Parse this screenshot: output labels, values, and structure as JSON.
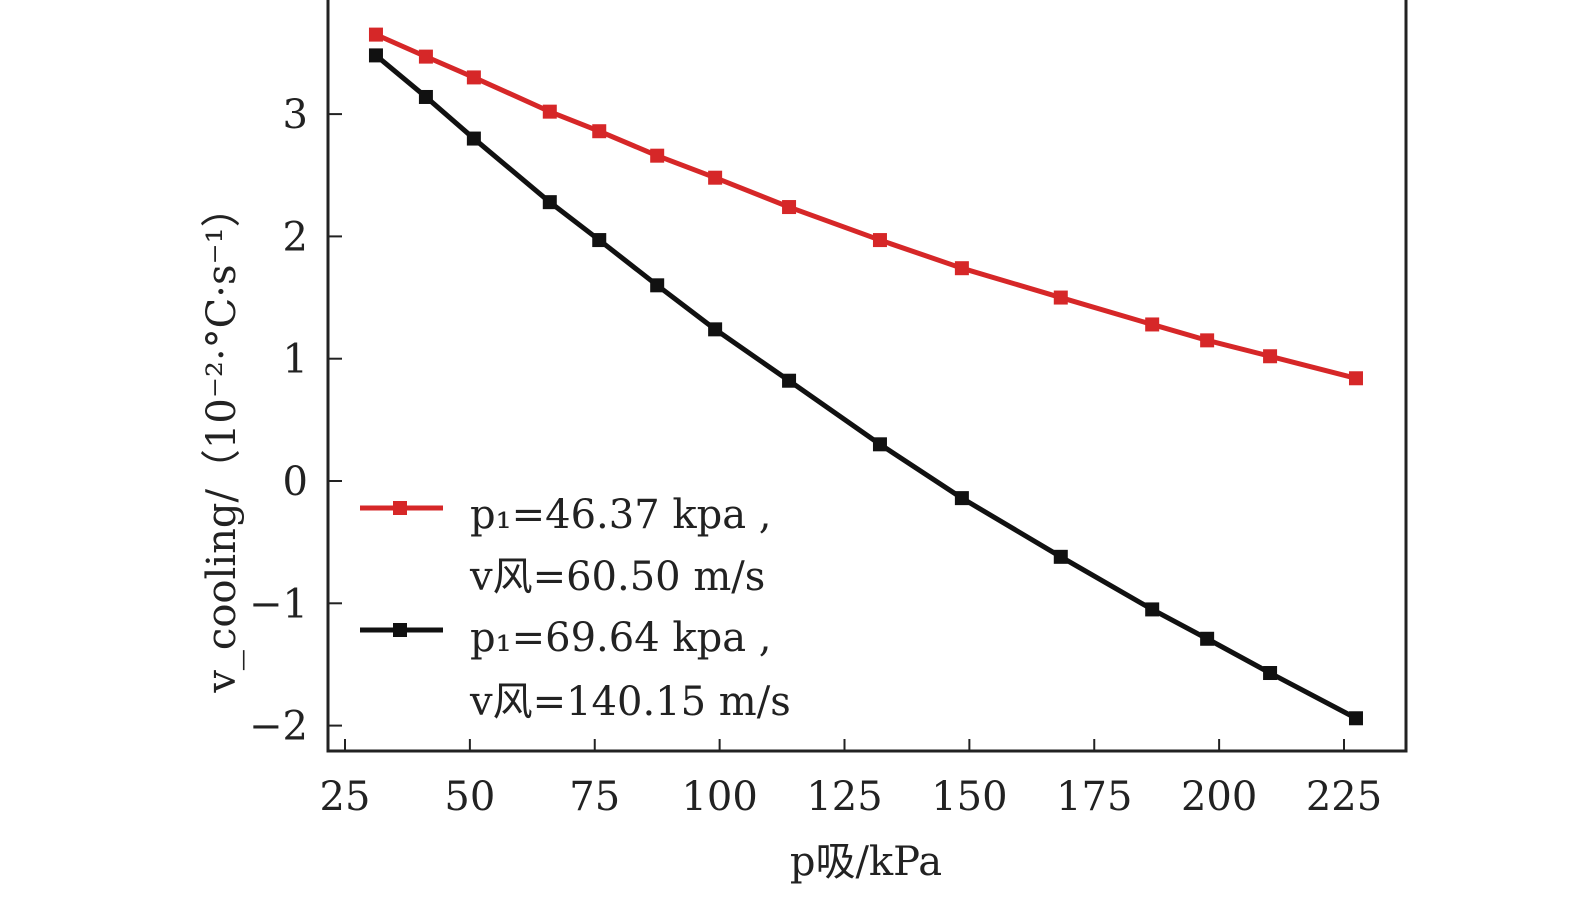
{
  "chart_data": {
    "type": "line",
    "title": "",
    "xlabel": "p吸/kPa",
    "xlabel_var": "p",
    "xlabel_sub": "吸",
    "xlabel_unit": "/kPa",
    "ylabel": "v_cooling/（10⁻²·°C·s⁻¹）",
    "ylabel_var": "v",
    "ylabel_sub": "cooling",
    "ylabel_unit": "/（10⁻²·°C·s⁻¹）",
    "xlim": [
      22,
      240
    ],
    "ylim": [
      -2.2,
      3.95
    ],
    "xticks": [
      25,
      50,
      75,
      100,
      125,
      150,
      175,
      200,
      225
    ],
    "xtick_labels": [
      "25",
      "50",
      "75",
      "100",
      "125",
      "150",
      "175",
      "200",
      "225"
    ],
    "yticks": [
      -2,
      -1,
      0,
      1,
      2,
      3
    ],
    "ytick_labels": [
      "−2",
      "−1",
      "0",
      "1",
      "2",
      "3"
    ],
    "grid": false,
    "legend_position": "lower-left",
    "x": [
      31.2,
      41.2,
      50.8,
      66.0,
      75.9,
      87.5,
      99.1,
      113.9,
      132.1,
      148.5,
      168.3,
      186.6,
      197.6,
      210.2,
      227.4
    ],
    "series": [
      {
        "name": "p1=46.37 kpa, v风=60.50 m/s",
        "legend_line1": "p₁=46.37 kpa ,",
        "legend_line2": "v风=60.50 m/s",
        "color": "#d62728",
        "marker": "square",
        "values": [
          3.65,
          3.47,
          3.3,
          3.02,
          2.86,
          2.66,
          2.48,
          2.24,
          1.97,
          1.74,
          1.5,
          1.28,
          1.15,
          1.02,
          0.84
        ]
      },
      {
        "name": "p1=69.64 kpa, v风=140.15 m/s",
        "legend_line1": "p₁=69.64 kpa ,",
        "legend_line2": "v风=140.15 m/s",
        "color": "#111111",
        "marker": "square",
        "values": [
          3.48,
          3.14,
          2.8,
          2.28,
          1.97,
          1.6,
          1.24,
          0.82,
          0.3,
          -0.14,
          -0.62,
          -1.05,
          -1.29,
          -1.57,
          -1.94
        ]
      }
    ]
  }
}
